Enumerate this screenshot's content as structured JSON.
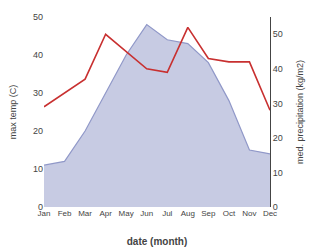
{
  "chart_data": {
    "type": "line",
    "categories": [
      "Jan",
      "Feb",
      "Mar",
      "Apr",
      "May",
      "Jun",
      "Jul",
      "Aug",
      "Sep",
      "Oct",
      "Nov",
      "Dec"
    ],
    "xlabel": "date (month)",
    "ylabel": "max temp (C)",
    "y2label": "med. precipitation (kg/m2)",
    "ylim": [
      0,
      50
    ],
    "yticks": [
      0,
      10,
      20,
      30,
      40,
      50
    ],
    "y2lim": [
      0,
      55
    ],
    "y2ticks": [
      0,
      10,
      20,
      30,
      40,
      50
    ],
    "grid": false,
    "series": [
      {
        "type": "area",
        "color": "#9098c8",
        "values": [
          11,
          12,
          20,
          30,
          40,
          48,
          44,
          43,
          38,
          28,
          15,
          14
        ]
      },
      {
        "type": "line",
        "color": "#c83030",
        "axis": "y2",
        "values": [
          29,
          33,
          37,
          50,
          45,
          40,
          39,
          52,
          43,
          42,
          42,
          28
        ]
      }
    ]
  }
}
